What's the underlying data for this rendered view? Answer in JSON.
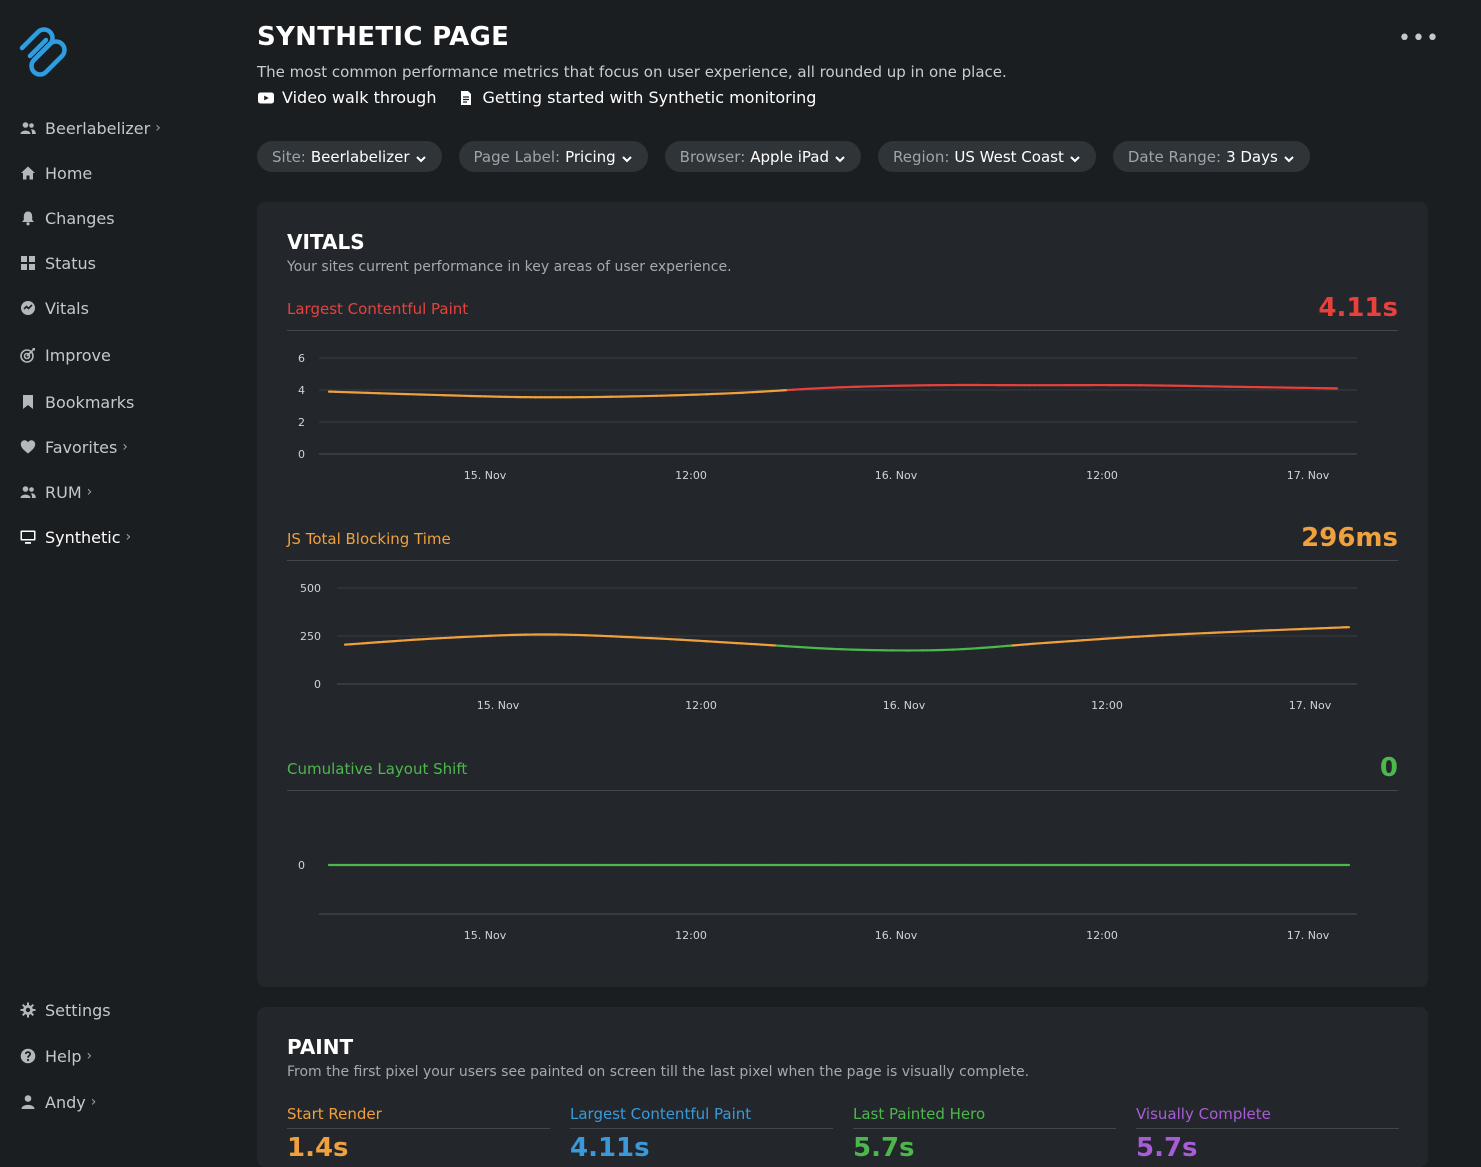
{
  "sidebar": {
    "items": [
      {
        "label": "Beerlabelizer",
        "icon": "users-icon",
        "chevron": true
      },
      {
        "label": "Home",
        "icon": "home-icon",
        "chevron": false
      },
      {
        "label": "Changes",
        "icon": "bell-icon",
        "chevron": false
      },
      {
        "label": "Status",
        "icon": "grid-icon",
        "chevron": false
      },
      {
        "label": "Vitals",
        "icon": "gauge-icon",
        "chevron": false
      },
      {
        "label": "Improve",
        "icon": "target-icon",
        "chevron": false
      },
      {
        "label": "Bookmarks",
        "icon": "bookmark-icon",
        "chevron": false
      },
      {
        "label": "Favorites",
        "icon": "heart-icon",
        "chevron": true
      },
      {
        "label": "RUM",
        "icon": "users-icon",
        "chevron": true
      },
      {
        "label": "Synthetic",
        "icon": "monitor-icon",
        "chevron": true,
        "active": true
      }
    ],
    "bottom_items": [
      {
        "label": "Settings",
        "icon": "gear-icon",
        "chevron": false
      },
      {
        "label": "Help",
        "icon": "help-icon",
        "chevron": true
      },
      {
        "label": "Andy",
        "icon": "user-icon",
        "chevron": true
      }
    ]
  },
  "header": {
    "title": "SYNTHETIC PAGE",
    "subtitle": "The most common performance metrics that focus on user experience, all rounded up in one place.",
    "links": [
      {
        "label": "Video walk through",
        "icon": "youtube-icon"
      },
      {
        "label": "Getting started with Synthetic monitoring",
        "icon": "document-icon"
      }
    ],
    "more": "•••"
  },
  "filters": [
    {
      "key": "Site:",
      "value": "Beerlabelizer"
    },
    {
      "key": "Page Label:",
      "value": "Pricing"
    },
    {
      "key": "Browser:",
      "value": "Apple iPad"
    },
    {
      "key": "Region:",
      "value": "US West Coast"
    },
    {
      "key": "Date Range:",
      "value": "3 Days"
    }
  ],
  "vitals": {
    "title": "VITALS",
    "subtitle": "Your sites current performance in key areas of user experience.",
    "metrics": [
      {
        "label": "Largest Contentful Paint",
        "value": "4.11s",
        "label_color": "#e8413c",
        "value_color": "#e8413c"
      },
      {
        "label": "JS Total Blocking Time",
        "value": "296ms",
        "label_color": "#f0a03c",
        "value_color": "#f0a03c"
      },
      {
        "label": "Cumulative Layout Shift",
        "value": "0",
        "label_color": "#4cb84c",
        "value_color": "#4cb84c"
      }
    ]
  },
  "paint": {
    "title": "PAINT",
    "subtitle": "From the first pixel your users see painted on screen till the last pixel when the page is visually complete.",
    "metrics": [
      {
        "label": "Start Render",
        "value": "1.4s",
        "color": "#f0a03c"
      },
      {
        "label": "Largest Contentful Paint",
        "value": "4.11s",
        "color": "#3a9ad9"
      },
      {
        "label": "Last Painted Hero",
        "value": "5.7s",
        "color": "#4cb84c"
      },
      {
        "label": "Visually Complete",
        "value": "5.7s",
        "color": "#a85cd6"
      }
    ]
  },
  "chart_data": [
    {
      "type": "line",
      "title": "Largest Contentful Paint",
      "x_ticks": [
        "15. Nov",
        "12:00",
        "16. Nov",
        "12:00",
        "17. Nov"
      ],
      "y_ticks": [
        0,
        2,
        4,
        6
      ],
      "ylim": [
        0,
        6
      ],
      "x": [
        0,
        0.1,
        0.2,
        0.3,
        0.4,
        0.5,
        0.6,
        0.7,
        0.8,
        0.9,
        1.0
      ],
      "series": [
        {
          "values": [
            3.9,
            3.7,
            3.55,
            3.6,
            3.8,
            4.15,
            4.3,
            4.3,
            4.3,
            4.2,
            4.1
          ]
        }
      ],
      "threshold": 4.0,
      "colors": {
        "good": "#f0a03c",
        "poor": "#e8413c"
      }
    },
    {
      "type": "line",
      "title": "JS Total Blocking Time",
      "x_ticks": [
        "15. Nov",
        "12:00",
        "16. Nov",
        "12:00",
        "17. Nov"
      ],
      "y_ticks": [
        0,
        250,
        500
      ],
      "ylim": [
        0,
        500
      ],
      "x": [
        0,
        0.1,
        0.2,
        0.3,
        0.4,
        0.5,
        0.6,
        0.7,
        0.8,
        0.9,
        1.0
      ],
      "series": [
        {
          "values": [
            205,
            240,
            258,
            240,
            210,
            180,
            178,
            215,
            250,
            275,
            296
          ]
        }
      ],
      "threshold": 200,
      "colors": {
        "good": "#4cb84c",
        "poor": "#f0a03c"
      }
    },
    {
      "type": "line",
      "title": "Cumulative Layout Shift",
      "x_ticks": [
        "15. Nov",
        "12:00",
        "16. Nov",
        "12:00",
        "17. Nov"
      ],
      "y_ticks": [
        0
      ],
      "ylim": [
        0,
        1
      ],
      "x": [
        0,
        1.0
      ],
      "series": [
        {
          "values": [
            0,
            0
          ]
        }
      ],
      "threshold": 0.1,
      "colors": {
        "good": "#4cb84c",
        "poor": "#f0a03c"
      }
    }
  ]
}
